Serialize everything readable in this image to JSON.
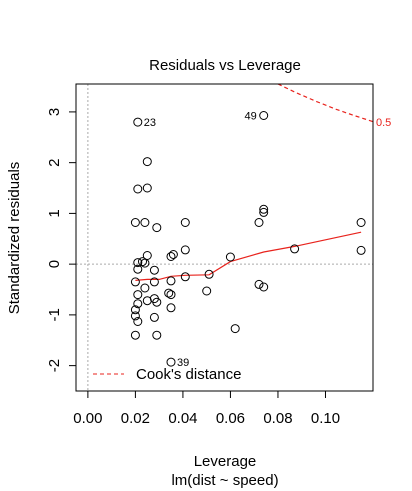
{
  "chart_data": {
    "type": "scatter",
    "title": "Residuals vs Leverage",
    "xlabel": "Leverage",
    "xlabel_sub": "lm(dist ~ speed)",
    "ylabel": "Standardized residuals",
    "xlim": [
      -0.005,
      0.12
    ],
    "ylim": [
      -2.5,
      3.55
    ],
    "xticks": [
      0.0,
      0.02,
      0.04,
      0.06,
      0.08,
      0.1
    ],
    "xtick_labels": [
      "0.00",
      "0.02",
      "0.04",
      "0.06",
      "0.08",
      "0.10"
    ],
    "yticks": [
      -2,
      -1,
      0,
      1,
      2,
      3
    ],
    "ytick_labels": [
      "-2",
      "-1",
      "0",
      "1",
      "2",
      "3"
    ],
    "points": [
      {
        "x": 0.115,
        "y": 0.27
      },
      {
        "x": 0.115,
        "y": 0.82
      },
      {
        "x": 0.087,
        "y": 0.3
      },
      {
        "x": 0.074,
        "y": 2.93
      },
      {
        "x": 0.074,
        "y": 1.02
      },
      {
        "x": 0.074,
        "y": 1.08
      },
      {
        "x": 0.074,
        "y": -0.45
      },
      {
        "x": 0.072,
        "y": 0.82
      },
      {
        "x": 0.072,
        "y": -0.4
      },
      {
        "x": 0.062,
        "y": -1.27
      },
      {
        "x": 0.06,
        "y": 0.14
      },
      {
        "x": 0.051,
        "y": -0.2
      },
      {
        "x": 0.05,
        "y": -0.53
      },
      {
        "x": 0.041,
        "y": 0.82
      },
      {
        "x": 0.041,
        "y": 0.28
      },
      {
        "x": 0.041,
        "y": -0.25
      },
      {
        "x": 0.036,
        "y": 0.19
      },
      {
        "x": 0.035,
        "y": 0.15
      },
      {
        "x": 0.035,
        "y": -0.33
      },
      {
        "x": 0.034,
        "y": -0.57
      },
      {
        "x": 0.035,
        "y": -0.6
      },
      {
        "x": 0.035,
        "y": -0.86
      },
      {
        "x": 0.035,
        "y": -1.93
      },
      {
        "x": 0.029,
        "y": 0.72
      },
      {
        "x": 0.028,
        "y": -0.12
      },
      {
        "x": 0.028,
        "y": -0.35
      },
      {
        "x": 0.028,
        "y": -0.68
      },
      {
        "x": 0.029,
        "y": -0.75
      },
      {
        "x": 0.028,
        "y": -1.05
      },
      {
        "x": 0.029,
        "y": -1.4
      },
      {
        "x": 0.025,
        "y": 2.02
      },
      {
        "x": 0.025,
        "y": 1.5
      },
      {
        "x": 0.025,
        "y": 0.17
      },
      {
        "x": 0.024,
        "y": 0.82
      },
      {
        "x": 0.024,
        "y": 0.02
      },
      {
        "x": 0.024,
        "y": -0.47
      },
      {
        "x": 0.025,
        "y": -0.72
      },
      {
        "x": 0.021,
        "y": 2.8
      },
      {
        "x": 0.021,
        "y": 1.48
      },
      {
        "x": 0.02,
        "y": 0.82
      },
      {
        "x": 0.021,
        "y": 0.03
      },
      {
        "x": 0.021,
        "y": -0.1
      },
      {
        "x": 0.02,
        "y": -0.35
      },
      {
        "x": 0.021,
        "y": -0.6
      },
      {
        "x": 0.021,
        "y": -0.78
      },
      {
        "x": 0.02,
        "y": -0.9
      },
      {
        "x": 0.02,
        "y": -1.02
      },
      {
        "x": 0.021,
        "y": -1.13
      },
      {
        "x": 0.02,
        "y": -1.4
      },
      {
        "x": 0.023,
        "y": 0.05
      }
    ],
    "point_labels": [
      {
        "text": "23",
        "x": 0.021,
        "y": 2.8
      },
      {
        "text": "49",
        "x": 0.074,
        "y": 2.93
      },
      {
        "text": "39",
        "x": 0.035,
        "y": -1.93
      }
    ],
    "smooth_line": {
      "color": "#e8231d",
      "x": [
        0.02,
        0.025,
        0.03,
        0.035,
        0.041,
        0.051,
        0.06,
        0.074,
        0.087,
        0.1,
        0.115
      ],
      "y": [
        -0.32,
        -0.3,
        -0.3,
        -0.24,
        -0.22,
        -0.21,
        0.05,
        0.24,
        0.35,
        0.48,
        0.63
      ]
    },
    "cooks_distance": {
      "label": "0.5",
      "color": "#e8231d",
      "x": [
        0.08,
        0.088,
        0.096,
        0.104,
        0.112,
        0.12
      ],
      "y": [
        3.55,
        3.37,
        3.21,
        3.06,
        2.93,
        2.81
      ]
    },
    "reference_lines": {
      "x": 0,
      "y": 0
    },
    "legend": {
      "position": "bottom-left",
      "label": "Cook's distance",
      "color": "#e8231d"
    }
  }
}
